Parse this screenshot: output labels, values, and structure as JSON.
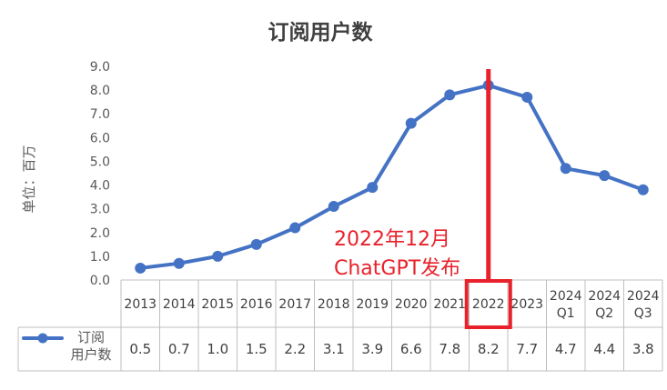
{
  "chart_data": {
    "type": "line",
    "title": "订阅用户数",
    "ylabel": "单位：百万",
    "ylim": [
      0,
      9
    ],
    "yticks": [
      "0.0",
      "1.0",
      "2.0",
      "3.0",
      "4.0",
      "5.0",
      "6.0",
      "7.0",
      "8.0",
      "9.0"
    ],
    "categories": [
      [
        "2013"
      ],
      [
        "2014"
      ],
      [
        "2015"
      ],
      [
        "2016"
      ],
      [
        "2017"
      ],
      [
        "2018"
      ],
      [
        "2019"
      ],
      [
        "2020"
      ],
      [
        "2021"
      ],
      [
        "2022"
      ],
      [
        "2023"
      ],
      [
        "2024",
        "Q1"
      ],
      [
        "2024",
        "Q2"
      ],
      [
        "2024",
        "Q3"
      ]
    ],
    "series": [
      {
        "name": "订阅用户数",
        "legend_lines": [
          "订阅",
          "用户数"
        ],
        "values": [
          0.5,
          0.7,
          1.0,
          1.5,
          2.2,
          3.1,
          3.9,
          6.6,
          7.8,
          8.2,
          7.7,
          4.7,
          4.4,
          3.8
        ],
        "labels": [
          "0.5",
          "0.7",
          "1.0",
          "1.5",
          "2.2",
          "3.1",
          "3.9",
          "6.6",
          "7.8",
          "8.2",
          "7.7",
          "4.7",
          "4.4",
          "3.8"
        ],
        "color": "#4472C4"
      }
    ],
    "grid": false,
    "legend": "data-table-left",
    "annotation": {
      "lines": [
        "2022年12月",
        "ChatGPT发布"
      ],
      "category": "2022",
      "color": "#E8212A"
    }
  }
}
